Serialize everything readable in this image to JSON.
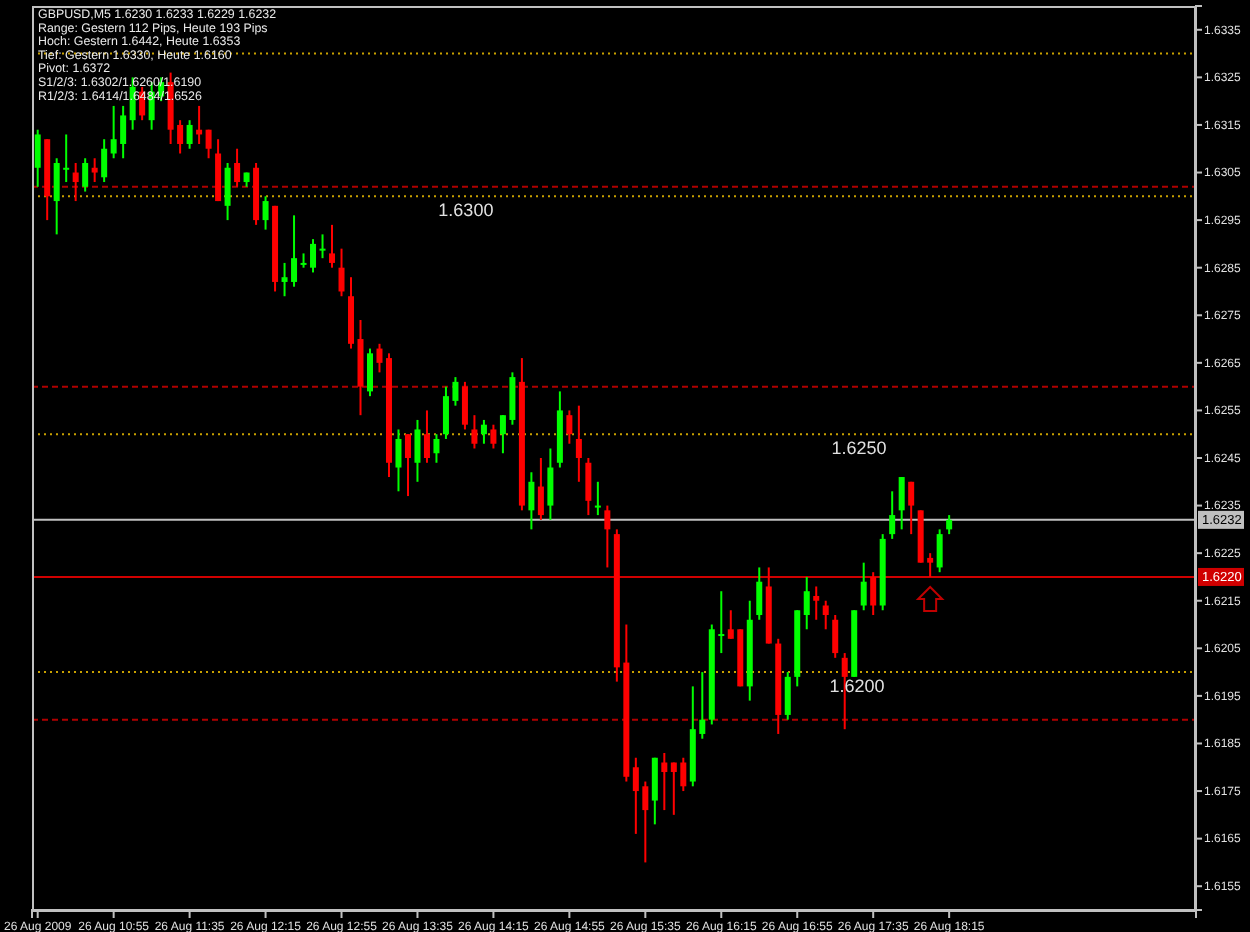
{
  "chart_data": {
    "type": "candlestick",
    "title": "GBPUSD,M5 1.6230 1.6233 1.6229 1.6232",
    "annotations": [
      "Range: Gestern 112 Pips, Heute 193 Pips",
      "Hoch: Gestern 1.6442, Heute 1.6353",
      "Tief: Gestern 1.6330, Heute 1.6160",
      "Pivot: 1.6372",
      "S1/2/3: 1.6302/1.6260/1.6190",
      "R1/2/3: 1.6414/1.6484/1.6526",
      {
        "text": "1.6300",
        "x": "2009-08-26T13:46",
        "y": 1.63
      },
      {
        "text": "1.6250",
        "x": "2009-08-26T17:13",
        "y": 1.625
      },
      {
        "text": "1.6200",
        "x": "2009-08-26T17:12",
        "y": 1.62
      }
    ],
    "x": [
      "2009-08-26T10:15",
      "2009-08-26T10:20",
      "2009-08-26T10:25",
      "2009-08-26T10:30",
      "2009-08-26T10:35",
      "2009-08-26T10:40",
      "2009-08-26T10:45",
      "2009-08-26T10:50",
      "2009-08-26T10:55",
      "2009-08-26T11:00",
      "2009-08-26T11:05",
      "2009-08-26T11:10",
      "2009-08-26T11:15",
      "2009-08-26T11:20",
      "2009-08-26T11:25",
      "2009-08-26T11:30",
      "2009-08-26T11:35",
      "2009-08-26T11:40",
      "2009-08-26T11:45",
      "2009-08-26T11:50",
      "2009-08-26T11:55",
      "2009-08-26T12:00",
      "2009-08-26T12:05",
      "2009-08-26T12:10",
      "2009-08-26T12:15",
      "2009-08-26T12:20",
      "2009-08-26T12:25",
      "2009-08-26T12:30",
      "2009-08-26T12:35",
      "2009-08-26T12:40",
      "2009-08-26T12:45",
      "2009-08-26T12:50",
      "2009-08-26T12:55",
      "2009-08-26T13:00",
      "2009-08-26T13:05",
      "2009-08-26T13:10",
      "2009-08-26T13:15",
      "2009-08-26T13:20",
      "2009-08-26T13:25",
      "2009-08-26T13:30",
      "2009-08-26T13:35",
      "2009-08-26T13:40",
      "2009-08-26T13:45",
      "2009-08-26T13:50",
      "2009-08-26T13:55",
      "2009-08-26T14:00",
      "2009-08-26T14:05",
      "2009-08-26T14:10",
      "2009-08-26T14:15",
      "2009-08-26T14:20",
      "2009-08-26T14:25",
      "2009-08-26T14:30",
      "2009-08-26T14:35",
      "2009-08-26T14:40",
      "2009-08-26T14:45",
      "2009-08-26T14:50",
      "2009-08-26T14:55",
      "2009-08-26T15:00",
      "2009-08-26T15:05",
      "2009-08-26T15:10",
      "2009-08-26T15:15",
      "2009-08-26T15:20",
      "2009-08-26T15:25",
      "2009-08-26T15:30",
      "2009-08-26T15:35",
      "2009-08-26T15:40",
      "2009-08-26T15:45",
      "2009-08-26T15:50",
      "2009-08-26T15:55",
      "2009-08-26T16:00",
      "2009-08-26T16:05",
      "2009-08-26T16:10",
      "2009-08-26T16:15",
      "2009-08-26T16:20",
      "2009-08-26T16:25",
      "2009-08-26T16:30",
      "2009-08-26T16:35",
      "2009-08-26T16:40",
      "2009-08-26T16:45",
      "2009-08-26T16:50",
      "2009-08-26T16:55",
      "2009-08-26T17:00",
      "2009-08-26T17:05",
      "2009-08-26T17:10",
      "2009-08-26T17:15",
      "2009-08-26T17:20",
      "2009-08-26T17:25",
      "2009-08-26T17:30",
      "2009-08-26T17:35",
      "2009-08-26T17:40",
      "2009-08-26T17:45",
      "2009-08-26T17:50",
      "2009-08-26T17:55",
      "2009-08-26T18:00",
      "2009-08-26T18:05",
      "2009-08-26T18:10",
      "2009-08-26T18:15"
    ],
    "ohlc": [
      [
        1.6306,
        1.6314,
        1.6302,
        1.6313
      ],
      [
        1.6312,
        1.6312,
        1.6295,
        1.63
      ],
      [
        1.6299,
        1.6308,
        1.6292,
        1.6307
      ],
      [
        1.6306,
        1.6313,
        1.6303,
        1.6306
      ],
      [
        1.6305,
        1.6307,
        1.6299,
        1.6303
      ],
      [
        1.6302,
        1.6308,
        1.6301,
        1.6307
      ],
      [
        1.6306,
        1.6308,
        1.6303,
        1.6305
      ],
      [
        1.6304,
        1.6312,
        1.6303,
        1.631
      ],
      [
        1.6309,
        1.6319,
        1.6308,
        1.6312
      ],
      [
        1.6311,
        1.6319,
        1.6308,
        1.6317
      ],
      [
        1.6316,
        1.6325,
        1.6314,
        1.6323
      ],
      [
        1.6322,
        1.6323,
        1.6316,
        1.6317
      ],
      [
        1.6316,
        1.6324,
        1.6314,
        1.6322
      ],
      [
        1.6321,
        1.6325,
        1.632,
        1.6324
      ],
      [
        1.6324,
        1.6326,
        1.6311,
        1.6314
      ],
      [
        1.6315,
        1.6316,
        1.6309,
        1.6311
      ],
      [
        1.6311,
        1.6316,
        1.631,
        1.6315
      ],
      [
        1.6314,
        1.6319,
        1.6311,
        1.6313
      ],
      [
        1.6314,
        1.6314,
        1.6308,
        1.631
      ],
      [
        1.6309,
        1.6312,
        1.6299,
        1.6299
      ],
      [
        1.6298,
        1.6307,
        1.6295,
        1.6306
      ],
      [
        1.6307,
        1.631,
        1.6302,
        1.6303
      ],
      [
        1.6303,
        1.6305,
        1.6302,
        1.6305
      ],
      [
        1.6306,
        1.6307,
        1.6294,
        1.6295
      ],
      [
        1.6295,
        1.63,
        1.6293,
        1.6299
      ],
      [
        1.6298,
        1.6298,
        1.628,
        1.6282
      ],
      [
        1.6282,
        1.6286,
        1.6279,
        1.6283
      ],
      [
        1.6282,
        1.6296,
        1.6281,
        1.6287
      ],
      [
        1.6286,
        1.6288,
        1.6285,
        1.6286
      ],
      [
        1.6285,
        1.6291,
        1.6284,
        1.629
      ],
      [
        1.6289,
        1.6292,
        1.6287,
        1.6289
      ],
      [
        1.6288,
        1.6294,
        1.6285,
        1.6286
      ],
      [
        1.6285,
        1.6289,
        1.6279,
        1.628
      ],
      [
        1.6279,
        1.6283,
        1.6268,
        1.6269
      ],
      [
        1.627,
        1.6274,
        1.6254,
        1.626
      ],
      [
        1.6259,
        1.6268,
        1.6258,
        1.6267
      ],
      [
        1.6268,
        1.6269,
        1.6263,
        1.6265
      ],
      [
        1.6266,
        1.6267,
        1.6241,
        1.6244
      ],
      [
        1.6243,
        1.6251,
        1.6238,
        1.6249
      ],
      [
        1.625,
        1.625,
        1.6237,
        1.6245
      ],
      [
        1.6244,
        1.6253,
        1.624,
        1.6251
      ],
      [
        1.625,
        1.6255,
        1.6244,
        1.6245
      ],
      [
        1.6246,
        1.625,
        1.6244,
        1.6249
      ],
      [
        1.625,
        1.626,
        1.6249,
        1.6258
      ],
      [
        1.6257,
        1.6262,
        1.6256,
        1.6261
      ],
      [
        1.626,
        1.6261,
        1.6251,
        1.6252
      ],
      [
        1.6251,
        1.6254,
        1.6247,
        1.6248
      ],
      [
        1.625,
        1.6253,
        1.6248,
        1.6252
      ],
      [
        1.6251,
        1.6252,
        1.6247,
        1.6248
      ],
      [
        1.625,
        1.6254,
        1.6246,
        1.6254
      ],
      [
        1.6253,
        1.6263,
        1.6252,
        1.6262
      ],
      [
        1.6261,
        1.6266,
        1.6234,
        1.6235
      ],
      [
        1.6234,
        1.6242,
        1.623,
        1.624
      ],
      [
        1.6239,
        1.6245,
        1.6232,
        1.6233
      ],
      [
        1.6235,
        1.6247,
        1.6232,
        1.6243
      ],
      [
        1.6244,
        1.6259,
        1.6243,
        1.6255
      ],
      [
        1.6254,
        1.6255,
        1.6248,
        1.625
      ],
      [
        1.6249,
        1.6256,
        1.624,
        1.6245
      ],
      [
        1.6244,
        1.6245,
        1.6233,
        1.6236
      ],
      [
        1.6235,
        1.624,
        1.6233,
        1.6235
      ],
      [
        1.6234,
        1.6235,
        1.6222,
        1.623
      ],
      [
        1.6229,
        1.623,
        1.6198,
        1.6201
      ],
      [
        1.6202,
        1.621,
        1.6177,
        1.6178
      ],
      [
        1.618,
        1.6182,
        1.6166,
        1.6175
      ],
      [
        1.6176,
        1.6177,
        1.616,
        1.6171
      ],
      [
        1.6173,
        1.6182,
        1.6168,
        1.6182
      ],
      [
        1.6181,
        1.6183,
        1.6171,
        1.6179
      ],
      [
        1.6181,
        1.6181,
        1.617,
        1.6179
      ],
      [
        1.6181,
        1.6182,
        1.6175,
        1.6176
      ],
      [
        1.6177,
        1.6197,
        1.6176,
        1.6188
      ],
      [
        1.6187,
        1.62,
        1.6186,
        1.619
      ],
      [
        1.619,
        1.621,
        1.6189,
        1.6209
      ],
      [
        1.6208,
        1.6217,
        1.6204,
        1.6208
      ],
      [
        1.6209,
        1.6213,
        1.6207,
        1.6207
      ],
      [
        1.6209,
        1.6209,
        1.6197,
        1.6197
      ],
      [
        1.6197,
        1.6215,
        1.6194,
        1.6211
      ],
      [
        1.6212,
        1.6222,
        1.6211,
        1.6219
      ],
      [
        1.6218,
        1.6222,
        1.6206,
        1.6206
      ],
      [
        1.6206,
        1.6207,
        1.6187,
        1.6191
      ],
      [
        1.6191,
        1.62,
        1.619,
        1.6199
      ],
      [
        1.6199,
        1.6213,
        1.6197,
        1.6213
      ],
      [
        1.6212,
        1.622,
        1.6209,
        1.6217
      ],
      [
        1.6216,
        1.6218,
        1.6211,
        1.6215
      ],
      [
        1.6214,
        1.6215,
        1.6209,
        1.6212
      ],
      [
        1.6211,
        1.6212,
        1.6203,
        1.6204
      ],
      [
        1.6203,
        1.6204,
        1.6188,
        1.6199
      ],
      [
        1.6199,
        1.6213,
        1.6199,
        1.6213
      ],
      [
        1.6214,
        1.6223,
        1.6213,
        1.6219
      ],
      [
        1.622,
        1.6221,
        1.6212,
        1.6214
      ],
      [
        1.6214,
        1.6229,
        1.6213,
        1.6228
      ],
      [
        1.6229,
        1.6238,
        1.6228,
        1.6233
      ],
      [
        1.6234,
        1.6241,
        1.623,
        1.6241
      ],
      [
        1.624,
        1.624,
        1.6229,
        1.6235
      ],
      [
        1.6234,
        1.6234,
        1.6223,
        1.6223
      ],
      [
        1.6224,
        1.6225,
        1.622,
        1.6223
      ],
      [
        1.6222,
        1.623,
        1.6221,
        1.6229
      ],
      [
        1.623,
        1.6233,
        1.6229,
        1.6232
      ]
    ],
    "colors": [
      "#00ff00",
      "#ff0000",
      "#00ff00",
      "#00ff00",
      "#ff0000",
      "#00ff00",
      "#ff0000",
      "#00ff00",
      "#00ff00",
      "#00ff00",
      "#00ff00",
      "#ff0000",
      "#00ff00",
      "#00ff00",
      "#ff0000",
      "#ff0000",
      "#00ff00",
      "#ff0000",
      "#ff0000",
      "#ff0000",
      "#00ff00",
      "#ff0000",
      "#00ff00",
      "#ff0000",
      "#00ff00",
      "#ff0000",
      "#00ff00",
      "#00ff00",
      "#00ff00",
      "#00ff00",
      "#00ff00",
      "#ff0000",
      "#ff0000",
      "#ff0000",
      "#ff0000",
      "#00ff00",
      "#ff0000",
      "#ff0000",
      "#00ff00",
      "#ff0000",
      "#00ff00",
      "#ff0000",
      "#00ff00",
      "#00ff00",
      "#00ff00",
      "#ff0000",
      "#ff0000",
      "#00ff00",
      "#ff0000",
      "#00ff00",
      "#00ff00",
      "#ff0000",
      "#00ff00",
      "#ff0000",
      "#00ff00",
      "#00ff00",
      "#ff0000",
      "#ff0000",
      "#ff0000",
      "#00ff00",
      "#ff0000",
      "#ff0000",
      "#ff0000",
      "#ff0000",
      "#ff0000",
      "#00ff00",
      "#ff0000",
      "#ff0000",
      "#ff0000",
      "#00ff00",
      "#00ff00",
      "#00ff00",
      "#00ff00",
      "#ff0000",
      "#ff0000",
      "#00ff00",
      "#00ff00",
      "#ff0000",
      "#ff0000",
      "#00ff00",
      "#00ff00",
      "#00ff00",
      "#ff0000",
      "#ff0000",
      "#ff0000",
      "#ff0000",
      "#00ff00",
      "#00ff00",
      "#ff0000",
      "#00ff00",
      "#00ff00",
      "#00ff00",
      "#ff0000",
      "#ff0000",
      "#ff0000",
      "#00ff00",
      "#00ff00"
    ],
    "xlim": [
      "2009-08-26T10:12",
      "2009-08-26T20:25"
    ],
    "xticks": [
      {
        "value": "2009-08-26T10:15",
        "label": "26 Aug 2009"
      },
      {
        "value": "2009-08-26T10:55",
        "label": "26 Aug 10:55"
      },
      {
        "value": "2009-08-26T11:35",
        "label": "26 Aug 11:35"
      },
      {
        "value": "2009-08-26T12:15",
        "label": "26 Aug 12:15"
      },
      {
        "value": "2009-08-26T12:55",
        "label": "26 Aug 12:55"
      },
      {
        "value": "2009-08-26T13:35",
        "label": "26 Aug 13:35"
      },
      {
        "value": "2009-08-26T14:15",
        "label": "26 Aug 14:15"
      },
      {
        "value": "2009-08-26T14:55",
        "label": "26 Aug 14:55"
      },
      {
        "value": "2009-08-26T15:35",
        "label": "26 Aug 15:35"
      },
      {
        "value": "2009-08-26T16:15",
        "label": "26 Aug 16:15"
      },
      {
        "value": "2009-08-26T16:55",
        "label": "26 Aug 16:55"
      },
      {
        "value": "2009-08-26T17:35",
        "label": "26 Aug 17:35"
      },
      {
        "value": "2009-08-26T18:15",
        "label": "26 Aug 18:15"
      }
    ],
    "ylim": [
      1.615,
      1.634
    ],
    "yticks": [
      1.6155,
      1.6165,
      1.6175,
      1.6185,
      1.6195,
      1.6205,
      1.6215,
      1.6225,
      1.6235,
      1.6245,
      1.6255,
      1.6265,
      1.6275,
      1.6285,
      1.6295,
      1.6305,
      1.6315,
      1.6325,
      1.6335
    ],
    "ref_lines": [
      {
        "axis": "y",
        "value": 1.633,
        "color": "#c8a000",
        "line_style": "dotted"
      },
      {
        "axis": "y",
        "value": 1.63,
        "color": "#c8a000",
        "line_style": "dotted"
      },
      {
        "axis": "y",
        "value": 1.6302,
        "color": "#b00000",
        "line_style": "dashed"
      },
      {
        "axis": "y",
        "value": 1.626,
        "color": "#b00000",
        "line_style": "dashed"
      },
      {
        "axis": "y",
        "value": 1.625,
        "color": "#c8a000",
        "line_style": "dotted"
      },
      {
        "axis": "y",
        "value": 1.62,
        "color": "#c8a000",
        "line_style": "dotted"
      },
      {
        "axis": "y",
        "value": 1.619,
        "color": "#b00000",
        "line_style": "dashed"
      },
      {
        "axis": "y",
        "value": 1.6232,
        "color": "#c0c0c0",
        "line_style": "solid",
        "label": "1.6232"
      },
      {
        "axis": "y",
        "value": 1.622,
        "color": "#d00000",
        "line_style": "solid",
        "label": "1.6220"
      }
    ]
  }
}
